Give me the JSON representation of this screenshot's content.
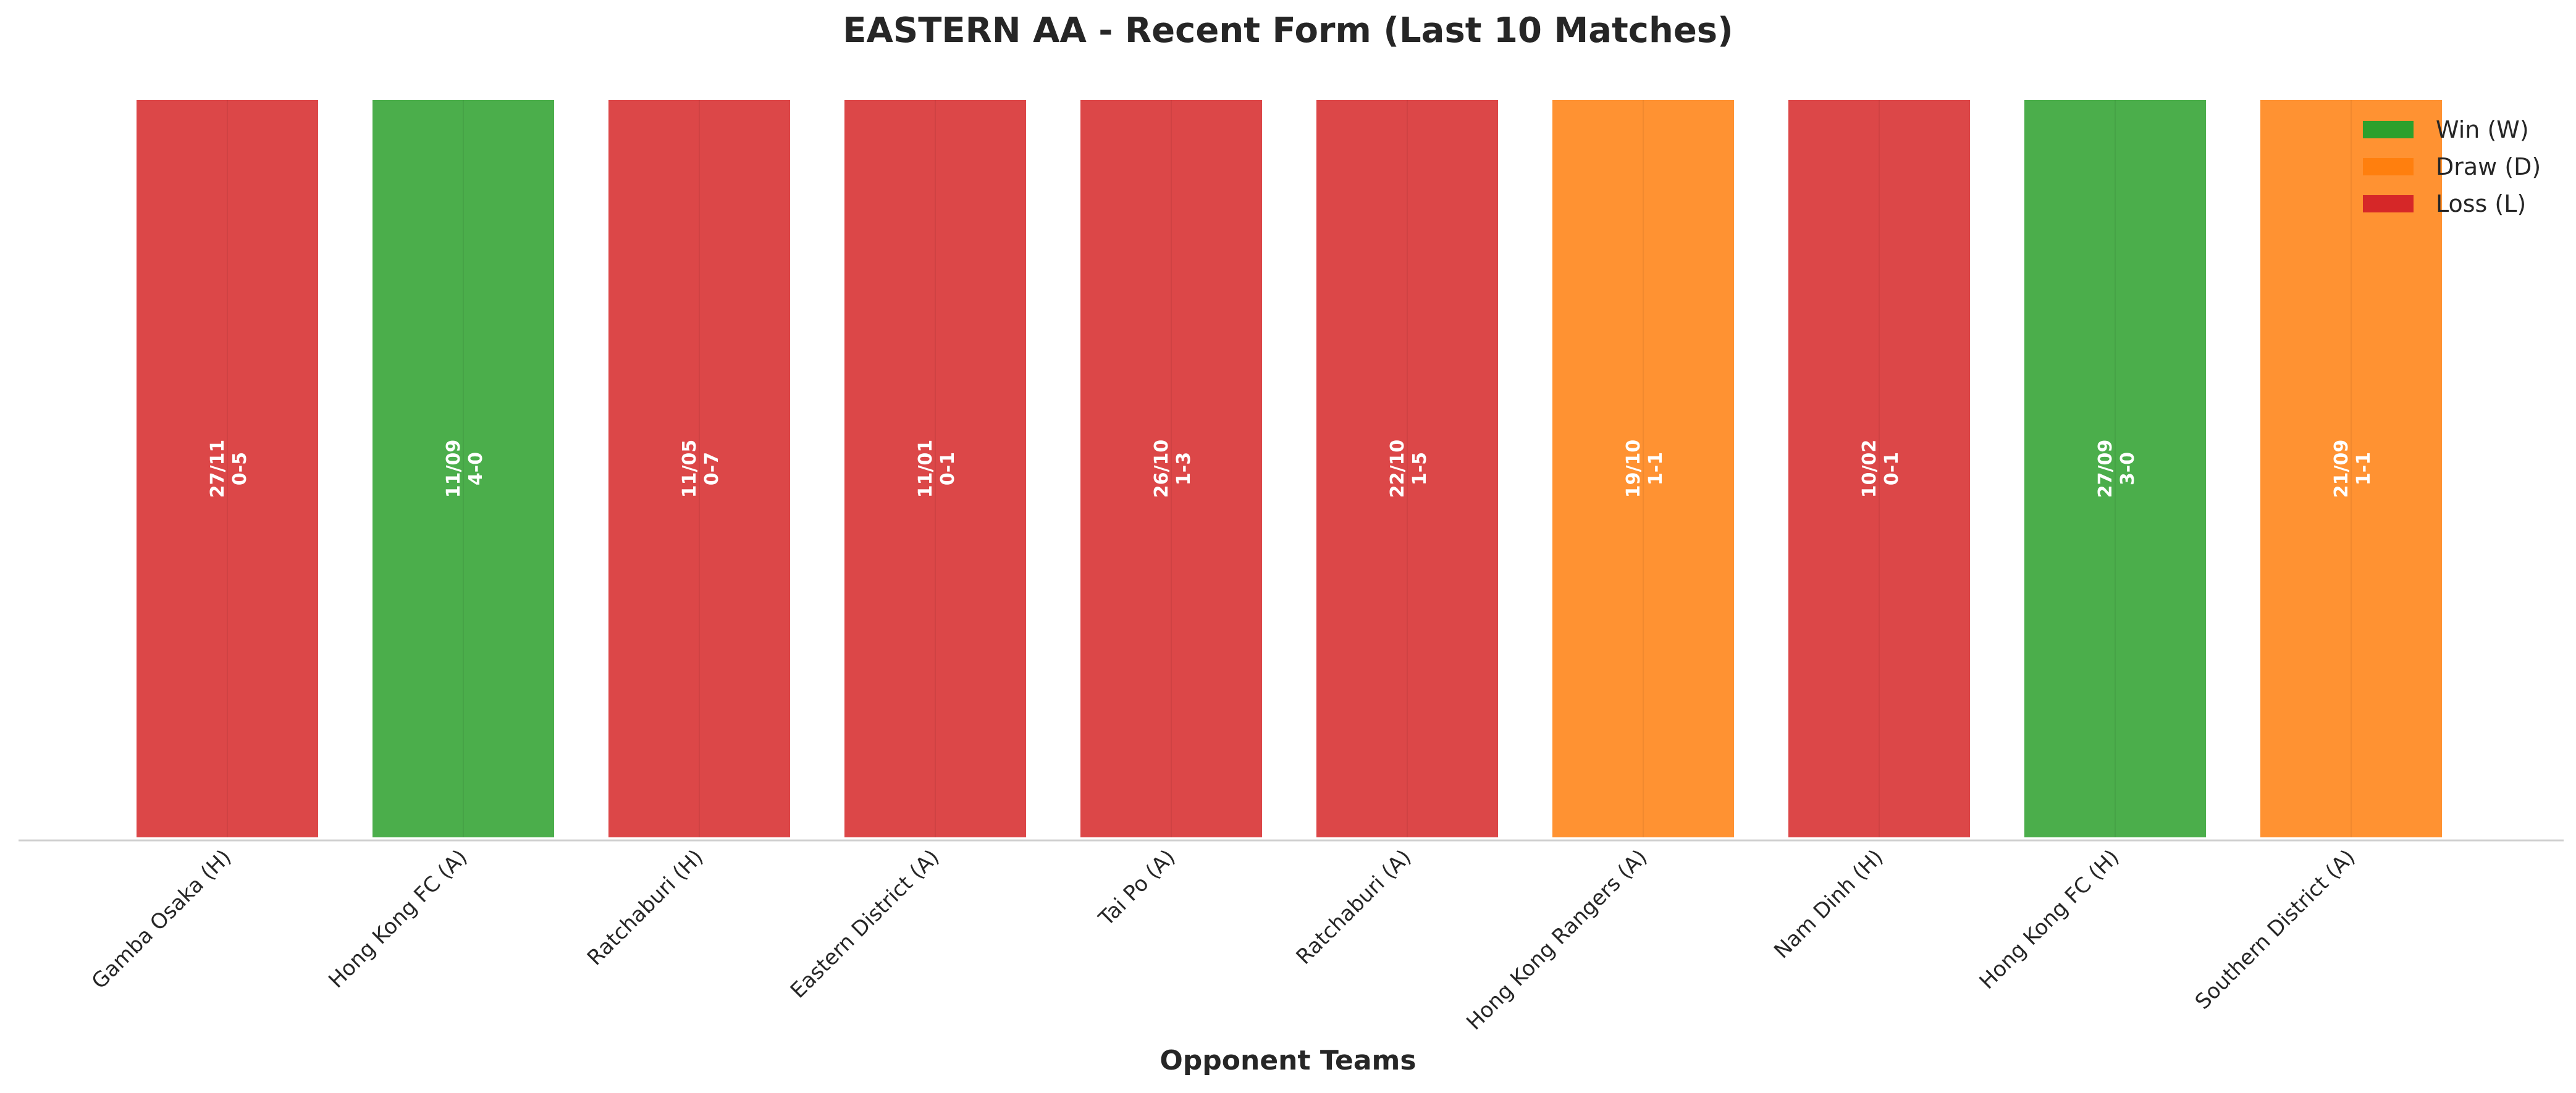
{
  "chart_data": {
    "type": "bar",
    "title": "EASTERN AA - Recent Form (Last 10 Matches)",
    "xlabel": "Opponent Teams",
    "ylabel": "",
    "ylim": [
      0,
      1
    ],
    "grid": false,
    "legend_position": "top-right",
    "categories": [
      "Gamba Osaka (H)",
      "Hong Kong FC (A)",
      "Ratchaburi (H)",
      "Eastern District (A)",
      "Tai Po (A)",
      "Ratchaburi (A)",
      "Hong Kong Rangers (A)",
      "Nam Dinh (H)",
      "Hong Kong FC (H)",
      "Southern District (A)"
    ],
    "values": [
      1,
      1,
      1,
      1,
      1,
      1,
      1,
      1,
      1,
      1
    ],
    "results": [
      "L",
      "W",
      "L",
      "L",
      "L",
      "L",
      "D",
      "L",
      "W",
      "D"
    ],
    "dates": [
      "27/11",
      "11/09",
      "11/05",
      "11/01",
      "26/10",
      "22/10",
      "19/10",
      "10/02",
      "27/09",
      "21/09"
    ],
    "scores": [
      "0-5",
      "4-0",
      "0-7",
      "0-1",
      "1-3",
      "1-5",
      "1-1",
      "0-1",
      "3-0",
      "1-1"
    ],
    "legend": [
      {
        "key": "W",
        "label": "Win (W)",
        "color": "#2ca02c"
      },
      {
        "key": "D",
        "label": "Draw (D)",
        "color": "#ff7f0e"
      },
      {
        "key": "L",
        "label": "Loss (L)",
        "color": "#d62728"
      }
    ]
  }
}
